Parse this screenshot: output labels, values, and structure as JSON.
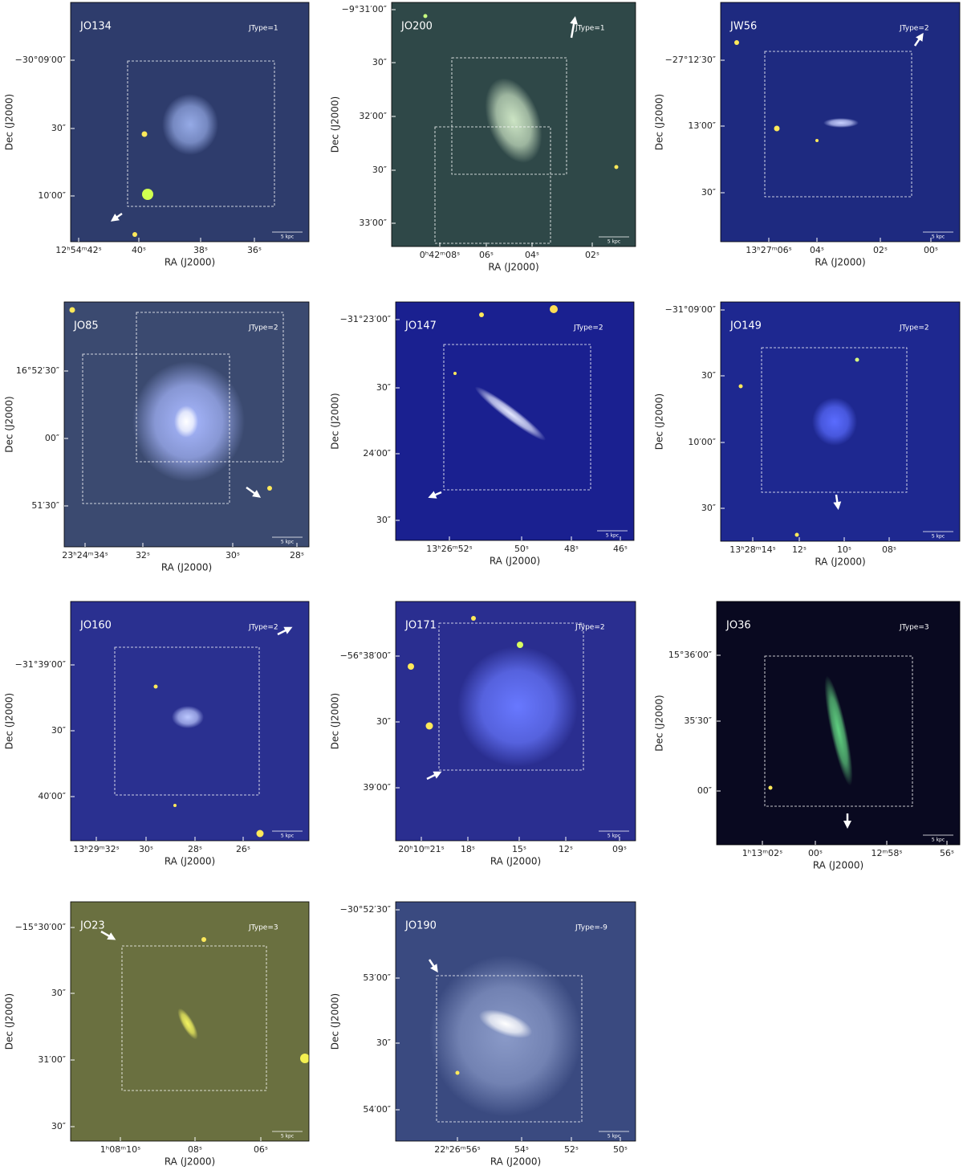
{
  "x_label": "RA (J2000)",
  "y_label": "Dec (J2000)",
  "scale_label": "5 kpc",
  "panels": [
    {
      "name": "JO134",
      "jtype": "JType=1",
      "x_ticks": [
        "12ʰ54ᵐ42ˢ",
        "40ˢ",
        "38ˢ",
        "36ˢ"
      ],
      "y_ticks": [
        "−30°09′00″",
        "30″",
        "10′00″"
      ]
    },
    {
      "name": "JO200",
      "jtype": "JType=1",
      "x_ticks": [
        "0ʰ42ᵐ08ˢ",
        "06ˢ",
        "04ˢ",
        "02ˢ"
      ],
      "y_ticks": [
        "−9°31′00″",
        "30″",
        "32′00″",
        "30″",
        "33′00″"
      ]
    },
    {
      "name": "JW56",
      "jtype": "JType=2",
      "x_ticks": [
        "13ʰ27ᵐ06ˢ",
        "04ˢ",
        "02ˢ",
        "00ˢ"
      ],
      "y_ticks": [
        "−27°12′30″",
        "13′00″",
        "30″"
      ]
    },
    {
      "name": "JO85",
      "jtype": "JType=2",
      "x_ticks": [
        "23ʰ24ᵐ34ˢ",
        "32ˢ",
        "30ˢ",
        "28ˢ"
      ],
      "y_ticks": [
        "16°52′30″",
        "00″",
        "51′30″"
      ]
    },
    {
      "name": "JO147",
      "jtype": "JType=2",
      "x_ticks": [
        "13ʰ26ᵐ52ˢ",
        "50ˢ",
        "48ˢ",
        "46ˢ"
      ],
      "y_ticks": [
        "−31°23′00″",
        "30″",
        "24′00″",
        "30″"
      ]
    },
    {
      "name": "JO149",
      "jtype": "JType=2",
      "x_ticks": [
        "13ʰ28ᵐ14ˢ",
        "12ˢ",
        "10ˢ",
        "08ˢ"
      ],
      "y_ticks": [
        "−31°09′00″",
        "30″",
        "10′00″",
        "30″"
      ]
    },
    {
      "name": "JO160",
      "jtype": "JType=2",
      "x_ticks": [
        "13ʰ29ᵐ32ˢ",
        "30ˢ",
        "28ˢ",
        "26ˢ"
      ],
      "y_ticks": [
        "−31°39′00″",
        "30″",
        "40′00″"
      ]
    },
    {
      "name": "JO171",
      "jtype": "JType=2",
      "x_ticks": [
        "20ʰ10ᵐ21ˢ",
        "18ˢ",
        "15ˢ",
        "12ˢ",
        "09ˢ"
      ],
      "y_ticks": [
        "−56°38′00″",
        "30″",
        "39′00″"
      ]
    },
    {
      "name": "JO36",
      "jtype": "JType=3",
      "x_ticks": [
        "1ʰ13ᵐ02ˢ",
        "00ˢ",
        "12ᵐ58ˢ",
        "56ˢ"
      ],
      "y_ticks": [
        "15°36′00″",
        "35′30″",
        "00″"
      ]
    },
    {
      "name": "JO23",
      "jtype": "JType=3",
      "x_ticks": [
        "1ʰ08ᵐ10ˢ",
        "08ˢ",
        "06ˢ"
      ],
      "y_ticks": [
        "−15°30′00″",
        "30″",
        "31′00″",
        "30″"
      ]
    },
    {
      "name": "JO190",
      "jtype": "JType=-9",
      "x_ticks": [
        "22ʰ26ᵐ56ˢ",
        "54ˢ",
        "52ˢ",
        "50ˢ"
      ],
      "y_ticks": [
        "−30°52′30″",
        "53′00″",
        "30″",
        "54′00″"
      ]
    }
  ]
}
